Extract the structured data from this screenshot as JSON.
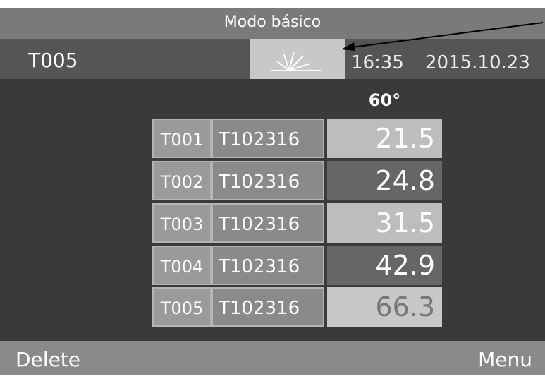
{
  "header": {
    "title": "Modo básico",
    "file": "T005",
    "time": "16:35",
    "date": "2015.10.23"
  },
  "table": {
    "angle": "60°",
    "rows": [
      [
        "T001",
        "T102316",
        "21.5"
      ],
      [
        "T002",
        "T102316",
        "24.8"
      ],
      [
        "T003",
        "T102316",
        "31.5"
      ],
      [
        "T004",
        "T102316",
        "42.9"
      ],
      [
        "T005",
        "T102316",
        "66.3"
      ]
    ]
  },
  "footer": {
    "left": "Delete",
    "right": "Menu"
  }
}
